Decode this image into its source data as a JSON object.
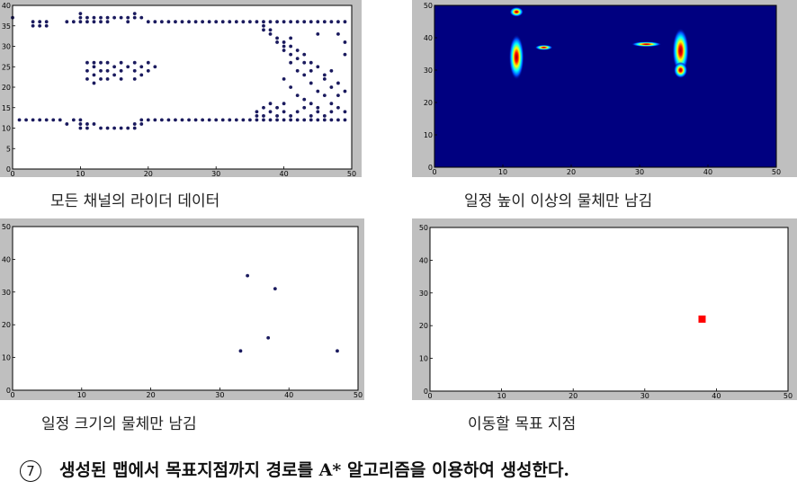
{
  "captions": {
    "p1": "모든 채널의 라이더 데이터",
    "p2": "일정 높이 이상의 물체만 남김",
    "p3": "일정 크기의 물체만 남김",
    "p4": "이동할 목표 지점"
  },
  "footer": {
    "number": "7",
    "text": "생성된 맵에서 목표지점까지 경로를 A* 알고리즘을 이용하여 생성한다."
  },
  "chart_data": [
    {
      "type": "scatter",
      "xlim": [
        0,
        50
      ],
      "ylim": [
        0,
        40
      ],
      "xticks": [
        0,
        10,
        20,
        30,
        40,
        50
      ],
      "yticks": [
        0,
        5,
        10,
        15,
        20,
        25,
        30,
        35,
        40
      ],
      "color": "#1a1a5e",
      "points": [
        [
          0,
          37
        ],
        [
          3,
          35
        ],
        [
          3,
          36
        ],
        [
          4,
          35
        ],
        [
          4,
          36
        ],
        [
          5,
          35
        ],
        [
          5,
          36
        ],
        [
          8,
          36
        ],
        [
          9,
          36
        ],
        [
          10,
          36
        ],
        [
          10,
          37
        ],
        [
          10,
          38
        ],
        [
          11,
          36
        ],
        [
          11,
          37
        ],
        [
          12,
          36
        ],
        [
          12,
          37
        ],
        [
          13,
          36
        ],
        [
          13,
          37
        ],
        [
          14,
          36
        ],
        [
          14,
          37
        ],
        [
          15,
          37
        ],
        [
          16,
          37
        ],
        [
          17,
          36
        ],
        [
          17,
          37
        ],
        [
          18,
          37
        ],
        [
          18,
          38
        ],
        [
          19,
          37
        ],
        [
          20,
          36
        ],
        [
          21,
          36
        ],
        [
          22,
          36
        ],
        [
          23,
          36
        ],
        [
          24,
          36
        ],
        [
          25,
          36
        ],
        [
          26,
          36
        ],
        [
          27,
          36
        ],
        [
          28,
          36
        ],
        [
          29,
          36
        ],
        [
          30,
          36
        ],
        [
          31,
          36
        ],
        [
          32,
          36
        ],
        [
          33,
          36
        ],
        [
          34,
          36
        ],
        [
          35,
          36
        ],
        [
          36,
          36
        ],
        [
          37,
          36
        ],
        [
          38,
          36
        ],
        [
          39,
          36
        ],
        [
          40,
          36
        ],
        [
          41,
          36
        ],
        [
          42,
          36
        ],
        [
          43,
          36
        ],
        [
          44,
          36
        ],
        [
          45,
          36
        ],
        [
          46,
          36
        ],
        [
          47,
          36
        ],
        [
          48,
          36
        ],
        [
          49,
          36
        ],
        [
          37,
          35
        ],
        [
          37,
          34
        ],
        [
          38,
          34
        ],
        [
          38,
          33
        ],
        [
          39,
          32
        ],
        [
          39,
          31
        ],
        [
          40,
          31
        ],
        [
          40,
          30
        ],
        [
          40,
          29
        ],
        [
          41,
          30
        ],
        [
          41,
          28
        ],
        [
          42,
          29
        ],
        [
          42,
          27
        ],
        [
          43,
          28
        ],
        [
          43,
          26
        ],
        [
          44,
          26
        ],
        [
          44,
          24
        ],
        [
          45,
          33
        ],
        [
          45,
          25
        ],
        [
          46,
          23
        ],
        [
          46,
          22
        ],
        [
          47,
          24
        ],
        [
          47,
          20
        ],
        [
          48,
          21
        ],
        [
          49,
          19
        ],
        [
          49,
          28
        ],
        [
          49,
          31
        ],
        [
          48,
          33
        ],
        [
          41,
          32
        ],
        [
          41,
          26
        ],
        [
          42,
          24
        ],
        [
          43,
          23
        ],
        [
          44,
          21
        ],
        [
          45,
          19
        ],
        [
          46,
          18
        ],
        [
          40,
          22
        ],
        [
          41,
          20
        ],
        [
          42,
          18
        ],
        [
          43,
          17
        ],
        [
          44,
          16
        ],
        [
          45,
          15
        ],
        [
          47,
          16
        ],
        [
          48,
          18
        ],
        [
          11,
          26
        ],
        [
          11,
          24
        ],
        [
          12,
          26
        ],
        [
          12,
          25
        ],
        [
          12,
          23
        ],
        [
          13,
          26
        ],
        [
          13,
          24
        ],
        [
          13,
          22
        ],
        [
          14,
          26
        ],
        [
          14,
          24
        ],
        [
          15,
          25
        ],
        [
          15,
          23
        ],
        [
          16,
          26
        ],
        [
          16,
          24
        ],
        [
          17,
          25
        ],
        [
          18,
          26
        ],
        [
          18,
          24
        ],
        [
          19,
          25
        ],
        [
          19,
          23
        ],
        [
          20,
          26
        ],
        [
          20,
          24
        ],
        [
          21,
          25
        ],
        [
          11,
          22
        ],
        [
          12,
          21
        ],
        [
          14,
          22
        ],
        [
          16,
          22
        ],
        [
          18,
          22
        ],
        [
          1,
          12
        ],
        [
          2,
          12
        ],
        [
          3,
          12
        ],
        [
          4,
          12
        ],
        [
          5,
          12
        ],
        [
          6,
          12
        ],
        [
          7,
          12
        ],
        [
          8,
          11
        ],
        [
          9,
          12
        ],
        [
          10,
          12
        ],
        [
          10,
          11
        ],
        [
          10,
          10
        ],
        [
          11,
          10
        ],
        [
          11,
          11
        ],
        [
          12,
          11
        ],
        [
          13,
          10
        ],
        [
          14,
          10
        ],
        [
          15,
          10
        ],
        [
          16,
          10
        ],
        [
          17,
          10
        ],
        [
          18,
          10
        ],
        [
          18,
          11
        ],
        [
          19,
          12
        ],
        [
          19,
          11
        ],
        [
          20,
          12
        ],
        [
          21,
          12
        ],
        [
          22,
          12
        ],
        [
          23,
          12
        ],
        [
          24,
          12
        ],
        [
          25,
          12
        ],
        [
          26,
          12
        ],
        [
          27,
          12
        ],
        [
          28,
          12
        ],
        [
          29,
          12
        ],
        [
          30,
          12
        ],
        [
          31,
          12
        ],
        [
          32,
          12
        ],
        [
          33,
          12
        ],
        [
          34,
          12
        ],
        [
          35,
          12
        ],
        [
          36,
          12
        ],
        [
          37,
          12
        ],
        [
          38,
          12
        ],
        [
          39,
          12
        ],
        [
          40,
          12
        ],
        [
          41,
          12
        ],
        [
          42,
          12
        ],
        [
          43,
          12
        ],
        [
          44,
          12
        ],
        [
          45,
          12
        ],
        [
          46,
          12
        ],
        [
          47,
          12
        ],
        [
          48,
          12
        ],
        [
          49,
          12
        ],
        [
          36,
          13
        ],
        [
          36,
          14
        ],
        [
          37,
          15
        ],
        [
          37,
          13
        ],
        [
          38,
          14
        ],
        [
          38,
          16
        ],
        [
          39,
          13
        ],
        [
          39,
          15
        ],
        [
          40,
          14
        ],
        [
          40,
          16
        ],
        [
          41,
          13
        ],
        [
          42,
          14
        ],
        [
          43,
          15
        ],
        [
          44,
          13
        ],
        [
          45,
          14
        ],
        [
          46,
          13
        ],
        [
          47,
          14
        ],
        [
          48,
          15
        ],
        [
          49,
          14
        ]
      ]
    },
    {
      "type": "heatmap",
      "xlim": [
        0,
        50
      ],
      "ylim": [
        0,
        50
      ],
      "xticks": [
        0,
        10,
        20,
        30,
        40,
        50
      ],
      "yticks": [
        0,
        10,
        20,
        30,
        40,
        50
      ],
      "blobs": [
        {
          "x": 12,
          "y": 48,
          "w": 1.0,
          "h": 1.5
        },
        {
          "x": 12,
          "y": 34,
          "w": 1.1,
          "h": 7
        },
        {
          "x": 16,
          "y": 37,
          "w": 1.3,
          "h": 0.8
        },
        {
          "x": 31,
          "y": 38,
          "w": 2.2,
          "h": 0.8
        },
        {
          "x": 36,
          "y": 36,
          "w": 1.2,
          "h": 7
        },
        {
          "x": 36,
          "y": 30,
          "w": 1.0,
          "h": 2.5
        }
      ]
    },
    {
      "type": "scatter",
      "xlim": [
        0,
        50
      ],
      "ylim": [
        0,
        50
      ],
      "xticks": [
        0,
        10,
        20,
        30,
        40,
        50
      ],
      "yticks": [
        0,
        10,
        20,
        30,
        40,
        50
      ],
      "color": "#1a1a5e",
      "points": [
        [
          34,
          35
        ],
        [
          38,
          31
        ],
        [
          37,
          16
        ],
        [
          33,
          12
        ],
        [
          47,
          12
        ]
      ]
    },
    {
      "type": "scatter",
      "xlim": [
        0,
        50
      ],
      "ylim": [
        0,
        50
      ],
      "xticks": [
        0,
        10,
        20,
        30,
        40,
        50
      ],
      "yticks": [
        0,
        10,
        20,
        30,
        40,
        50
      ],
      "color": "#ff0000",
      "marker": "square",
      "points": [
        [
          38,
          22
        ]
      ]
    }
  ]
}
